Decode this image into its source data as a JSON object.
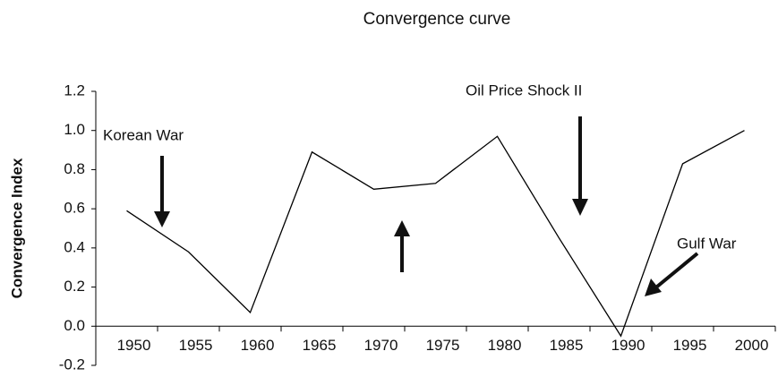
{
  "chart_data": {
    "type": "line",
    "title": "Convergence curve",
    "y_label": "Convergence Index",
    "categories": [
      "1950",
      "1955",
      "1960",
      "1965",
      "1970",
      "1975",
      "1980",
      "1985",
      "1990",
      "1995",
      "2000"
    ],
    "values": [
      0.59,
      0.38,
      0.07,
      0.89,
      0.7,
      0.73,
      0.97,
      0.45,
      -0.05,
      0.83,
      1.0
    ],
    "color": "#000000",
    "ylim": [
      -0.2,
      1.2
    ],
    "yticks": [
      -0.2,
      {
        "value": 0.0,
        "label": "0.0"
      },
      0.2,
      0.4,
      0.6,
      0.8,
      {
        "value": 1.0,
        "label": "1.0"
      },
      1.2
    ],
    "annotations": [
      "Korean War",
      "Oil Price Shock II",
      "Gulf War"
    ]
  }
}
